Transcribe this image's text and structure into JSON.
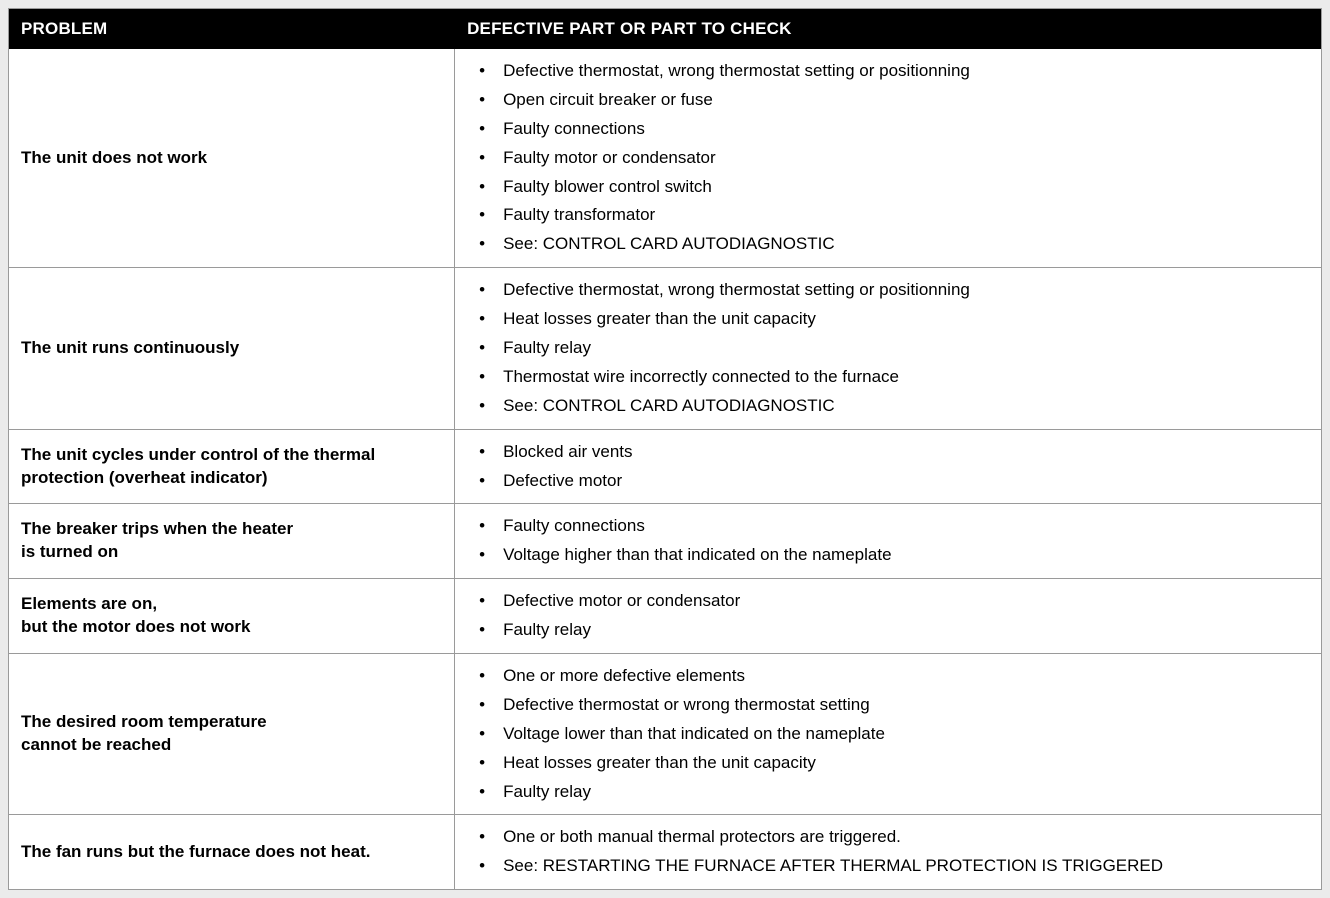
{
  "table": {
    "type": "table",
    "columns": [
      {
        "header": "PROBLEM",
        "width_pct": 34,
        "align": "left",
        "font_weight": "bold"
      },
      {
        "header": "DEFECTIVE PART OR PART TO CHECK",
        "width_pct": 66,
        "align": "left",
        "font_weight": "normal"
      }
    ],
    "header_bg": "#000000",
    "header_text_color": "#ffffff",
    "header_font_size_pt": 13,
    "body_bg": "#ffffff",
    "body_text_color": "#000000",
    "body_font_size_pt": 13,
    "border_color": "#9a9a9a",
    "page_bg": "#ebebeb",
    "bullet_style": "disc",
    "rows": [
      {
        "problem": "The unit does not work",
        "checks": [
          "Defective thermostat, wrong thermostat setting or positionning",
          "Open circuit breaker or fuse",
          "Faulty connections",
          "Faulty motor or condensator",
          "Faulty blower control switch",
          "Faulty transformator",
          "See: CONTROL CARD AUTODIAGNOSTIC"
        ]
      },
      {
        "problem": "The unit runs continuously",
        "checks": [
          "Defective thermostat, wrong thermostat setting or positionning",
          "Heat losses greater than the unit capacity",
          "Faulty relay",
          "Thermostat wire incorrectly connected to the furnace",
          "See: CONTROL CARD AUTODIAGNOSTIC"
        ]
      },
      {
        "problem": "The unit cycles under control of the thermal protection (overheat indicator)",
        "checks": [
          "Blocked air vents",
          "Defective motor"
        ]
      },
      {
        "problem": "The breaker trips when the heater\nis turned on",
        "checks": [
          "Faulty connections",
          "Voltage higher than that indicated on the nameplate"
        ]
      },
      {
        "problem": "Elements are on,\nbut the motor does not work",
        "checks": [
          "Defective motor or condensator",
          "Faulty relay"
        ]
      },
      {
        "problem": "The desired room temperature\ncannot be reached",
        "checks": [
          "One or more defective elements",
          "Defective thermostat or wrong thermostat setting",
          "Voltage lower than that indicated on the nameplate",
          "Heat losses greater than the unit capacity",
          "Faulty relay"
        ]
      },
      {
        "problem": "The fan runs but the furnace does not heat.",
        "checks": [
          "One or both manual thermal protectors are triggered.",
          "See: RESTARTING THE FURNACE AFTER THERMAL PROTECTION IS TRIGGERED"
        ]
      }
    ]
  }
}
